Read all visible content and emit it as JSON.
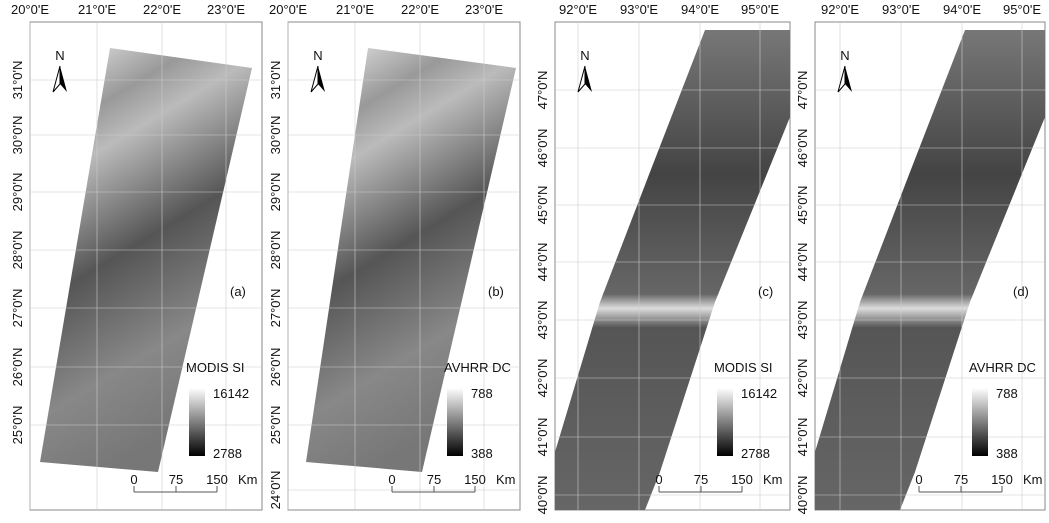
{
  "panels": [
    {
      "letter": "(a)",
      "lon_labels": [
        "20°0'E",
        "21°0'E",
        "22°0'E",
        "23°0'E"
      ],
      "lat_labels": [
        "31°0'N",
        "30°0'N",
        "29°0'N",
        "28°0'N",
        "27°0'N",
        "26°0'N",
        "25°0'N"
      ],
      "north": "N",
      "legend": {
        "title": "MODIS SI",
        "max": "16142",
        "min": "2788"
      },
      "scale": {
        "ticks": [
          "0",
          "75",
          "150"
        ],
        "unit": "Km"
      }
    },
    {
      "letter": "(b)",
      "lon_labels": [
        "20°0'E",
        "21°0'E",
        "22°0'E",
        "23°0'E"
      ],
      "lat_labels": [
        "31°0'N",
        "30°0'N",
        "29°0'N",
        "28°0'N",
        "27°0'N",
        "26°0'N",
        "25°0'N",
        "24°0'N"
      ],
      "north": "N",
      "legend": {
        "title": "AVHRR DC",
        "max": "788",
        "min": "388"
      },
      "scale": {
        "ticks": [
          "0",
          "75",
          "150"
        ],
        "unit": "Km"
      }
    },
    {
      "letter": "(c)",
      "lon_labels": [
        "92°0'E",
        "93°0'E",
        "94°0'E",
        "95°0'E"
      ],
      "lat_labels": [
        "47°0'N",
        "46°0'N",
        "45°0'N",
        "44°0'N",
        "43°0'N",
        "42°0'N",
        "41°0'N",
        "40°0'N"
      ],
      "north": "N",
      "legend": {
        "title": "MODIS SI",
        "max": "16142",
        "min": "2788"
      },
      "scale": {
        "ticks": [
          "0",
          "75",
          "150"
        ],
        "unit": "Km"
      }
    },
    {
      "letter": "(d)",
      "lon_labels": [
        "92°0'E",
        "93°0'E",
        "94°0'E",
        "95°0'E"
      ],
      "lat_labels": [
        "47°0'N",
        "46°0'N",
        "45°0'N",
        "44°0'N",
        "43°0'N",
        "42°0'N",
        "41°0'N",
        "40°0'N"
      ],
      "north": "N",
      "legend": {
        "title": "AVHRR DC",
        "max": "788",
        "min": "388"
      },
      "scale": {
        "ticks": [
          "0",
          "75",
          "150"
        ],
        "unit": "Km"
      }
    }
  ]
}
